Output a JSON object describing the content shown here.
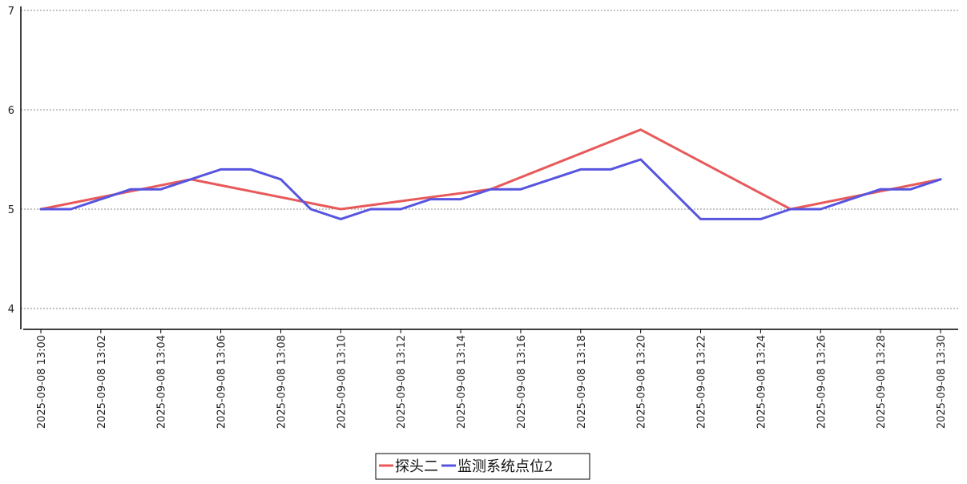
{
  "chart_data": {
    "type": "line",
    "title": "",
    "xlabel": "",
    "ylabel": "",
    "x_ticks": [
      "2025-09-08 13:00",
      "2025-09-08 13:02",
      "2025-09-08 13:04",
      "2025-09-08 13:06",
      "2025-09-08 13:08",
      "2025-09-08 13:10",
      "2025-09-08 13:12",
      "2025-09-08 13:14",
      "2025-09-08 13:16",
      "2025-09-08 13:18",
      "2025-09-08 13:20",
      "2025-09-08 13:22",
      "2025-09-08 13:24",
      "2025-09-08 13:26",
      "2025-09-08 13:28",
      "2025-09-08 13:30"
    ],
    "ylim": [
      3.8,
      7
    ],
    "y_ticks": [
      4,
      5,
      6,
      7
    ],
    "grid": "horizontal dashed",
    "legend_position": "bottom-center",
    "series": [
      {
        "name": "探头二",
        "color": "#e8595a",
        "points": [
          {
            "x": "2025-09-08 13:00",
            "y": 5.0
          },
          {
            "x": "2025-09-08 13:05",
            "y": 5.3
          },
          {
            "x": "2025-09-08 13:10",
            "y": 5.0
          },
          {
            "x": "2025-09-08 13:15",
            "y": 5.2
          },
          {
            "x": "2025-09-08 13:20",
            "y": 5.8
          },
          {
            "x": "2025-09-08 13:25",
            "y": 5.0
          },
          {
            "x": "2025-09-08 13:30",
            "y": 5.3
          }
        ]
      },
      {
        "name": "监测系统点位2",
        "color": "#5755e0",
        "points": [
          {
            "x": "2025-09-08 13:00",
            "y": 5.0
          },
          {
            "x": "2025-09-08 13:01",
            "y": 5.0
          },
          {
            "x": "2025-09-08 13:02",
            "y": 5.1
          },
          {
            "x": "2025-09-08 13:03",
            "y": 5.2
          },
          {
            "x": "2025-09-08 13:04",
            "y": 5.2
          },
          {
            "x": "2025-09-08 13:05",
            "y": 5.3
          },
          {
            "x": "2025-09-08 13:06",
            "y": 5.4
          },
          {
            "x": "2025-09-08 13:07",
            "y": 5.4
          },
          {
            "x": "2025-09-08 13:08",
            "y": 5.3
          },
          {
            "x": "2025-09-08 13:09",
            "y": 5.0
          },
          {
            "x": "2025-09-08 13:10",
            "y": 4.9
          },
          {
            "x": "2025-09-08 13:11",
            "y": 5.0
          },
          {
            "x": "2025-09-08 13:12",
            "y": 5.0
          },
          {
            "x": "2025-09-08 13:13",
            "y": 5.1
          },
          {
            "x": "2025-09-08 13:14",
            "y": 5.1
          },
          {
            "x": "2025-09-08 13:15",
            "y": 5.2
          },
          {
            "x": "2025-09-08 13:16",
            "y": 5.2
          },
          {
            "x": "2025-09-08 13:17",
            "y": 5.3
          },
          {
            "x": "2025-09-08 13:18",
            "y": 5.4
          },
          {
            "x": "2025-09-08 13:19",
            "y": 5.4
          },
          {
            "x": "2025-09-08 13:20",
            "y": 5.5
          },
          {
            "x": "2025-09-08 13:21",
            "y": 5.2
          },
          {
            "x": "2025-09-08 13:22",
            "y": 4.9
          },
          {
            "x": "2025-09-08 13:23",
            "y": 4.9
          },
          {
            "x": "2025-09-08 13:24",
            "y": 4.9
          },
          {
            "x": "2025-09-08 13:25",
            "y": 5.0
          },
          {
            "x": "2025-09-08 13:26",
            "y": 5.0
          },
          {
            "x": "2025-09-08 13:27",
            "y": 5.1
          },
          {
            "x": "2025-09-08 13:28",
            "y": 5.2
          },
          {
            "x": "2025-09-08 13:29",
            "y": 5.2
          },
          {
            "x": "2025-09-08 13:30",
            "y": 5.3
          }
        ]
      }
    ]
  },
  "colors": {
    "grid": "#888888",
    "axis": "#000000",
    "background": "#ffffff"
  }
}
